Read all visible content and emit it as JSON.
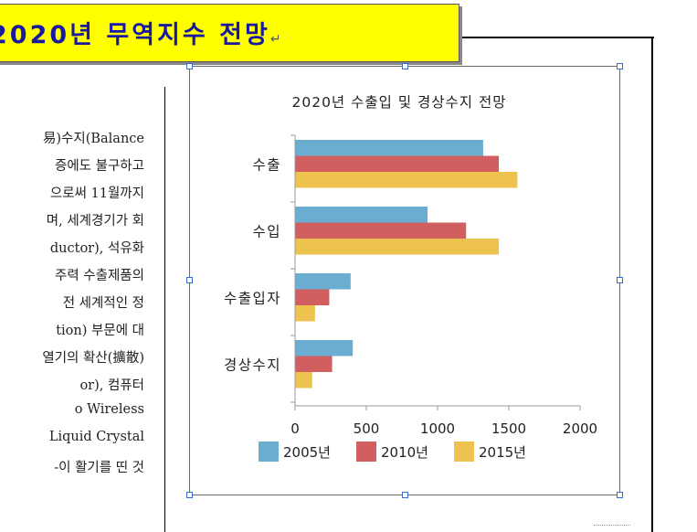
{
  "banner": {
    "title": "2020년 무역지수 전망",
    "paragraph_mark": "↵"
  },
  "body_text": {
    "lines": [
      "易)수지(Balance",
      "증에도 불구하고",
      "으로써 11월까지",
      "며, 세계경기가 회",
      "ductor), 석유화",
      "주력 수출제품의",
      "전 세계적인 정",
      "tion) 부문에 대",
      "열기의 확산(擴散)",
      "or),        컴퓨터",
      "o          Wireless",
      "Liquid   Crystal",
      "-이 활기를 띤 것"
    ]
  },
  "chart_data": {
    "type": "bar",
    "orientation": "horizontal",
    "title": "2020년 수출입 및 경상수지 전망",
    "categories": [
      "수출",
      "수입",
      "수출입자",
      "경상수지"
    ],
    "series": [
      {
        "name": "2005년",
        "color": "#6badd1",
        "values": [
          1320,
          930,
          390,
          405
        ]
      },
      {
        "name": "2010년",
        "color": "#d25f5f",
        "values": [
          1430,
          1200,
          240,
          260
        ]
      },
      {
        "name": "2015년",
        "color": "#eec24e",
        "values": [
          1560,
          1430,
          140,
          120
        ]
      }
    ],
    "xlim": [
      0,
      2000
    ],
    "x_ticks": [
      "0",
      "500",
      "1000",
      "1500",
      "2000"
    ],
    "grid": false,
    "legend_position": "bottom"
  }
}
